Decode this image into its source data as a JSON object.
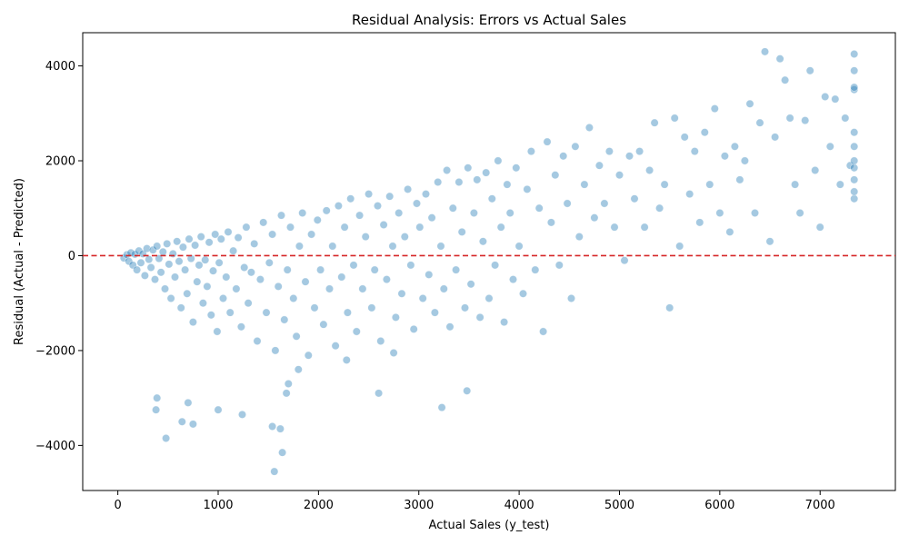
{
  "chart_data": {
    "type": "scatter",
    "title": "Residual Analysis: Errors vs Actual Sales",
    "xlabel": "Actual Sales (y_test)",
    "ylabel": "Residual (Actual - Predicted)",
    "xlim": [
      -350,
      7750
    ],
    "ylim": [
      -4950,
      4700
    ],
    "xticks": [
      0,
      1000,
      2000,
      3000,
      4000,
      5000,
      6000,
      7000
    ],
    "xtick_labels": [
      "0",
      "1000",
      "2000",
      "3000",
      "4000",
      "5000",
      "6000",
      "7000"
    ],
    "yticks": [
      -4000,
      -2000,
      0,
      2000,
      4000
    ],
    "ytick_labels": [
      "−4000",
      "−2000",
      "0",
      "2000",
      "4000"
    ],
    "grid": false,
    "legend": "none",
    "reference_line": {
      "y": 0,
      "style": "dashed",
      "color": "#d62728"
    },
    "marker_color": "#1f77b4",
    "marker_alpha": 0.4,
    "series": [
      {
        "points": [
          [
            60,
            -50
          ],
          [
            90,
            20
          ],
          [
            110,
            -120
          ],
          [
            130,
            60
          ],
          [
            150,
            -200
          ],
          [
            170,
            30
          ],
          [
            190,
            -300
          ],
          [
            210,
            100
          ],
          [
            230,
            -150
          ],
          [
            250,
            40
          ],
          [
            270,
            -420
          ],
          [
            290,
            150
          ],
          [
            310,
            -80
          ],
          [
            330,
            -250
          ],
          [
            350,
            120
          ],
          [
            370,
            -500
          ],
          [
            390,
            200
          ],
          [
            410,
            -60
          ],
          [
            430,
            -350
          ],
          [
            450,
            80
          ],
          [
            470,
            -700
          ],
          [
            490,
            250
          ],
          [
            510,
            -180
          ],
          [
            530,
            -900
          ],
          [
            550,
            40
          ],
          [
            570,
            -450
          ],
          [
            590,
            300
          ],
          [
            610,
            -120
          ],
          [
            630,
            -1100
          ],
          [
            650,
            180
          ],
          [
            670,
            -300
          ],
          [
            690,
            -800
          ],
          [
            710,
            350
          ],
          [
            730,
            -60
          ],
          [
            750,
            -1400
          ],
          [
            770,
            220
          ],
          [
            790,
            -550
          ],
          [
            810,
            -200
          ],
          [
            830,
            400
          ],
          [
            850,
            -1000
          ],
          [
            870,
            -90
          ],
          [
            890,
            -650
          ],
          [
            910,
            280
          ],
          [
            930,
            -1250
          ],
          [
            950,
            -320
          ],
          [
            970,
            450
          ],
          [
            990,
            -1600
          ],
          [
            1010,
            -150
          ],
          [
            1030,
            350
          ],
          [
            1050,
            -900
          ],
          [
            1080,
            -450
          ],
          [
            1100,
            500
          ],
          [
            1120,
            -1200
          ],
          [
            1150,
            100
          ],
          [
            1180,
            -700
          ],
          [
            1200,
            380
          ],
          [
            1230,
            -1500
          ],
          [
            1260,
            -250
          ],
          [
            1280,
            600
          ],
          [
            1300,
            -1000
          ],
          [
            1330,
            -350
          ],
          [
            1360,
            250
          ],
          [
            1390,
            -1800
          ],
          [
            1420,
            -500
          ],
          [
            1450,
            700
          ],
          [
            1480,
            -1200
          ],
          [
            1510,
            -150
          ],
          [
            1540,
            450
          ],
          [
            1570,
            -2000
          ],
          [
            1600,
            -650
          ],
          [
            1630,
            850
          ],
          [
            1660,
            -1350
          ],
          [
            1690,
            -300
          ],
          [
            1720,
            600
          ],
          [
            1750,
            -900
          ],
          [
            1780,
            -1700
          ],
          [
            1810,
            200
          ],
          [
            1840,
            900
          ],
          [
            1870,
            -550
          ],
          [
            1900,
            -2100
          ],
          [
            1930,
            450
          ],
          [
            1960,
            -1100
          ],
          [
            1990,
            750
          ],
          [
            2020,
            -300
          ],
          [
            2050,
            -1450
          ],
          [
            2080,
            950
          ],
          [
            2110,
            -700
          ],
          [
            2140,
            200
          ],
          [
            2170,
            -1900
          ],
          [
            2200,
            1050
          ],
          [
            2230,
            -450
          ],
          [
            2260,
            600
          ],
          [
            2290,
            -1200
          ],
          [
            2320,
            1200
          ],
          [
            2350,
            -200
          ],
          [
            2380,
            -1600
          ],
          [
            2410,
            850
          ],
          [
            2440,
            -700
          ],
          [
            2470,
            400
          ],
          [
            2500,
            1300
          ],
          [
            2530,
            -1100
          ],
          [
            2560,
            -300
          ],
          [
            2590,
            1050
          ],
          [
            2620,
            -1800
          ],
          [
            2650,
            650
          ],
          [
            2680,
            -500
          ],
          [
            2710,
            1250
          ],
          [
            2740,
            200
          ],
          [
            2770,
            -1300
          ],
          [
            2800,
            900
          ],
          [
            2830,
            -800
          ],
          [
            2860,
            400
          ],
          [
            2890,
            1400
          ],
          [
            2920,
            -200
          ],
          [
            2950,
            -1550
          ],
          [
            2980,
            1100
          ],
          [
            3010,
            600
          ],
          [
            3040,
            -900
          ],
          [
            3070,
            1300
          ],
          [
            3100,
            -400
          ],
          [
            3130,
            800
          ],
          [
            3160,
            -1200
          ],
          [
            3190,
            1550
          ],
          [
            3220,
            200
          ],
          [
            3250,
            -700
          ],
          [
            3280,
            1800
          ],
          [
            3310,
            -1500
          ],
          [
            3340,
            1000
          ],
          [
            3370,
            -300
          ],
          [
            3400,
            1550
          ],
          [
            3430,
            500
          ],
          [
            3460,
            -1100
          ],
          [
            3490,
            1850
          ],
          [
            3520,
            -600
          ],
          [
            3550,
            900
          ],
          [
            3580,
            1600
          ],
          [
            3610,
            -1300
          ],
          [
            3640,
            300
          ],
          [
            3670,
            1750
          ],
          [
            3700,
            -900
          ],
          [
            3730,
            1200
          ],
          [
            3760,
            -200
          ],
          [
            3790,
            2000
          ],
          [
            3820,
            600
          ],
          [
            3850,
            -1400
          ],
          [
            3880,
            1500
          ],
          [
            3910,
            900
          ],
          [
            3940,
            -500
          ],
          [
            3970,
            1850
          ],
          [
            4000,
            200
          ],
          [
            4040,
            -800
          ],
          [
            4080,
            1400
          ],
          [
            4120,
            2200
          ],
          [
            4160,
            -300
          ],
          [
            4200,
            1000
          ],
          [
            4240,
            -1600
          ],
          [
            4280,
            2400
          ],
          [
            4320,
            700
          ],
          [
            4360,
            1700
          ],
          [
            4400,
            -200
          ],
          [
            4440,
            2100
          ],
          [
            4480,
            1100
          ],
          [
            4520,
            -900
          ],
          [
            4560,
            2300
          ],
          [
            4600,
            400
          ],
          [
            4650,
            1500
          ],
          [
            4700,
            2700
          ],
          [
            4750,
            800
          ],
          [
            4800,
            1900
          ],
          [
            4850,
            1100
          ],
          [
            4900,
            2200
          ],
          [
            4950,
            600
          ],
          [
            5000,
            1700
          ],
          [
            5050,
            -100
          ],
          [
            5100,
            2100
          ],
          [
            5150,
            1200
          ],
          [
            5200,
            2200
          ],
          [
            5250,
            600
          ],
          [
            5300,
            1800
          ],
          [
            5350,
            2800
          ],
          [
            5400,
            1000
          ],
          [
            5450,
            1500
          ],
          [
            5500,
            -1100
          ],
          [
            5550,
            2900
          ],
          [
            5600,
            200
          ],
          [
            5650,
            2500
          ],
          [
            5700,
            1300
          ],
          [
            5750,
            2200
          ],
          [
            5800,
            700
          ],
          [
            5850,
            2600
          ],
          [
            5900,
            1500
          ],
          [
            5950,
            3100
          ],
          [
            6000,
            900
          ],
          [
            6050,
            2100
          ],
          [
            6100,
            500
          ],
          [
            6150,
            2300
          ],
          [
            6200,
            1600
          ],
          [
            6250,
            2000
          ],
          [
            6300,
            3200
          ],
          [
            6350,
            900
          ],
          [
            6400,
            2800
          ],
          [
            6450,
            4300
          ],
          [
            6500,
            300
          ],
          [
            6550,
            2500
          ],
          [
            6600,
            4150
          ],
          [
            6650,
            3700
          ],
          [
            6700,
            2900
          ],
          [
            6750,
            1500
          ],
          [
            6800,
            900
          ],
          [
            6850,
            2850
          ],
          [
            6900,
            3900
          ],
          [
            6950,
            1800
          ],
          [
            7000,
            600
          ],
          [
            7050,
            3350
          ],
          [
            7100,
            2300
          ],
          [
            7150,
            3300
          ],
          [
            7200,
            1500
          ],
          [
            7250,
            2900
          ],
          [
            7300,
            1900
          ],
          [
            7340,
            1200
          ],
          [
            7340,
            1350
          ],
          [
            7340,
            1600
          ],
          [
            7340,
            1850
          ],
          [
            7340,
            2000
          ],
          [
            7340,
            2300
          ],
          [
            7340,
            2600
          ],
          [
            7340,
            3500
          ],
          [
            7340,
            3550
          ],
          [
            7340,
            3900
          ],
          [
            7340,
            4250
          ],
          [
            480,
            -3850
          ],
          [
            390,
            -3000
          ],
          [
            380,
            -3250
          ],
          [
            700,
            -3100
          ],
          [
            640,
            -3500
          ],
          [
            750,
            -3550
          ],
          [
            1000,
            -3250
          ],
          [
            1240,
            -3350
          ],
          [
            1540,
            -3600
          ],
          [
            1620,
            -3650
          ],
          [
            1640,
            -4150
          ],
          [
            1560,
            -4550
          ],
          [
            1680,
            -2900
          ],
          [
            1700,
            -2700
          ],
          [
            1800,
            -2400
          ],
          [
            2600,
            -2900
          ],
          [
            3230,
            -3200
          ],
          [
            3480,
            -2850
          ],
          [
            2280,
            -2200
          ],
          [
            2750,
            -2050
          ]
        ]
      }
    ]
  }
}
